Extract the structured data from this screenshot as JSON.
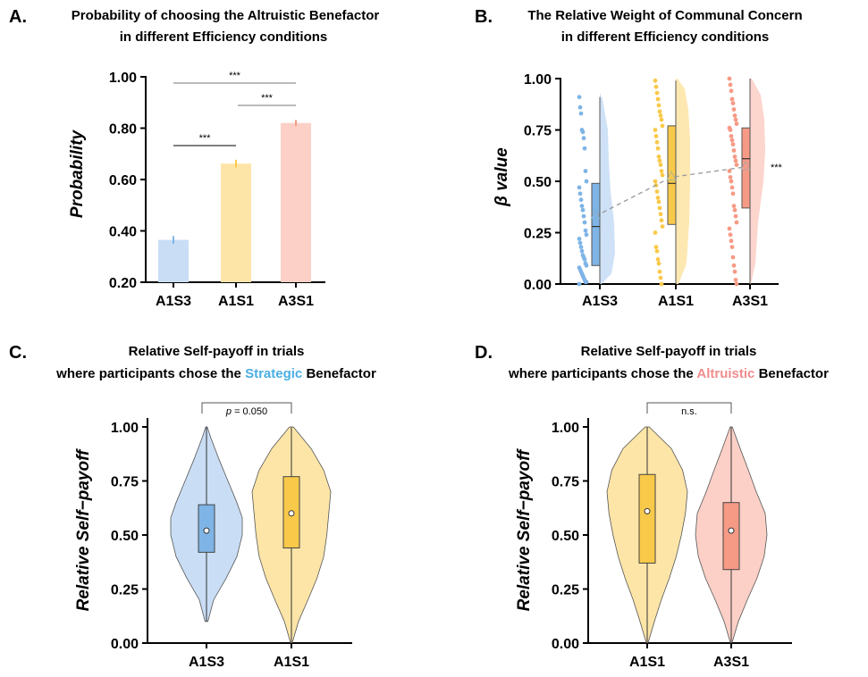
{
  "colors": {
    "A1S3": "#7fb4e6",
    "A1S1": "#f9c94a",
    "A3S1": "#f79a85",
    "A1S3_light": "#c9def5",
    "A1S1_light": "#fde5a8",
    "A3S1_light": "#fcd0c6",
    "strategic_word": "#4aaee2",
    "altruistic_word": "#f08c8c"
  },
  "panels": {
    "A": {
      "label": "A.",
      "title_line1": "Probability of choosing the Altruistic Benefactor",
      "title_line2": "in different Efficiency conditions"
    },
    "B": {
      "label": "B.",
      "title_line1": "The Relative Weight of Communal Concern",
      "title_line2": "in different Efficiency conditions"
    },
    "C": {
      "label": "C.",
      "title_line1": "Relative Self-payoff in trials",
      "title_line2_pre": "where participants chose the ",
      "title_line2_word": "Strategic",
      "title_line2_post": " Benefactor"
    },
    "D": {
      "label": "D.",
      "title_line1": "Relative Self-payoff in trials",
      "title_line2_pre": "where participants chose the ",
      "title_line2_word": "Altruistic",
      "title_line2_post": " Benefactor"
    }
  },
  "chart_data": [
    {
      "id": "A",
      "type": "bar",
      "title": "Probability of choosing the Altruistic Benefactor in different Efficiency conditions",
      "xlabel": "",
      "ylabel": "Probability",
      "ylim": [
        0.2,
        1.0
      ],
      "yticks": [
        "0.20",
        "0.40",
        "0.60",
        "0.80",
        "1.00"
      ],
      "categories": [
        "A1S3",
        "A1S1",
        "A3S1"
      ],
      "values": [
        0.365,
        0.662,
        0.82
      ],
      "error": [
        0.015,
        0.015,
        0.012
      ],
      "significance": [
        {
          "from": "A1S3",
          "to": "A1S1",
          "label": "***"
        },
        {
          "from": "A1S1",
          "to": "A3S1",
          "label": "***"
        },
        {
          "from": "A1S3",
          "to": "A3S1",
          "label": "***"
        }
      ]
    },
    {
      "id": "B",
      "type": "raincloud",
      "title": "The Relative Weight of Communal Concern in different Efficiency conditions",
      "xlabel": "",
      "ylabel": "β value",
      "ylim": [
        0,
        1
      ],
      "yticks": [
        "0.00",
        "0.25",
        "0.50",
        "0.75",
        "1.00"
      ],
      "categories": [
        "A1S3",
        "A1S1",
        "A3S1"
      ],
      "box": [
        {
          "q1": 0.09,
          "median": 0.28,
          "q3": 0.49,
          "min": 0.0,
          "max": 0.91,
          "mean": 0.33
        },
        {
          "q1": 0.29,
          "median": 0.49,
          "q3": 0.77,
          "min": 0.0,
          "max": 0.99,
          "mean": 0.52
        },
        {
          "q1": 0.37,
          "median": 0.61,
          "q3": 0.76,
          "min": 0.0,
          "max": 1.0,
          "mean": 0.57
        }
      ],
      "points": [
        [
          0.91,
          0.86,
          0.83,
          0.75,
          0.74,
          0.71,
          0.66,
          0.55,
          0.5,
          0.47,
          0.44,
          0.41,
          0.38,
          0.36,
          0.33,
          0.3,
          0.26,
          0.24,
          0.22,
          0.2,
          0.18,
          0.16,
          0.14,
          0.13,
          0.12,
          0.1,
          0.09,
          0.08,
          0.07,
          0.06,
          0.05,
          0.04,
          0.03,
          0.02,
          0.01,
          0.01,
          0.0
        ],
        [
          0.99,
          0.96,
          0.93,
          0.9,
          0.87,
          0.84,
          0.82,
          0.8,
          0.77,
          0.75,
          0.72,
          0.69,
          0.66,
          0.62,
          0.6,
          0.58,
          0.55,
          0.53,
          0.5,
          0.48,
          0.45,
          0.42,
          0.4,
          0.37,
          0.34,
          0.31,
          0.28,
          0.25,
          0.18,
          0.16,
          0.12,
          0.1,
          0.06,
          0.03,
          0.0
        ],
        [
          1.0,
          0.97,
          0.94,
          0.9,
          0.88,
          0.85,
          0.82,
          0.8,
          0.78,
          0.76,
          0.75,
          0.72,
          0.7,
          0.68,
          0.65,
          0.62,
          0.6,
          0.58,
          0.55,
          0.52,
          0.5,
          0.47,
          0.44,
          0.38,
          0.36,
          0.33,
          0.3,
          0.27,
          0.24,
          0.21,
          0.18,
          0.13,
          0.09,
          0.06,
          0.02,
          0.0
        ]
      ],
      "trend_label": "***"
    },
    {
      "id": "C",
      "type": "violin",
      "title": "Relative Self-payoff in trials where participants chose the Strategic Benefactor",
      "xlabel": "",
      "ylabel": "Relative Self−payoff",
      "ylim": [
        0,
        1
      ],
      "yticks": [
        "0.00",
        "0.25",
        "0.50",
        "0.75",
        "1.00"
      ],
      "categories": [
        "A1S3",
        "A1S1"
      ],
      "box": [
        {
          "q1": 0.42,
          "median": 0.52,
          "q3": 0.64,
          "min": 0.1,
          "max": 1.0
        },
        {
          "q1": 0.44,
          "median": 0.6,
          "q3": 0.77,
          "min": 0.0,
          "max": 1.0
        }
      ],
      "annotation": {
        "prefix": "p",
        "text": " = 0.050"
      }
    },
    {
      "id": "D",
      "type": "violin",
      "title": "Relative Self-payoff in trials where participants chose the Altruistic Benefactor",
      "xlabel": "",
      "ylabel": "Relative Self−payoff",
      "ylim": [
        0,
        1
      ],
      "yticks": [
        "0.00",
        "0.25",
        "0.50",
        "0.75",
        "1.00"
      ],
      "categories": [
        "A1S1",
        "A3S1"
      ],
      "box": [
        {
          "q1": 0.37,
          "median": 0.61,
          "q3": 0.78,
          "min": 0.0,
          "max": 1.0
        },
        {
          "q1": 0.34,
          "median": 0.52,
          "q3": 0.65,
          "min": 0.0,
          "max": 1.0
        }
      ],
      "annotation": {
        "prefix": "",
        "text": "n.s."
      }
    }
  ]
}
